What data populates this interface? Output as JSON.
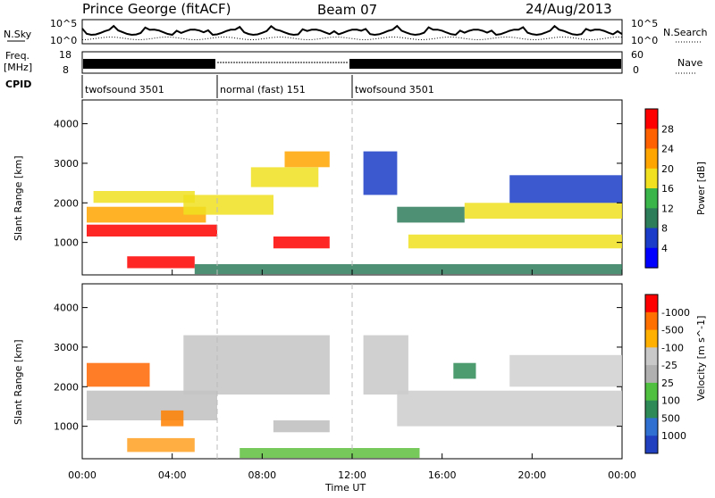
{
  "header": {
    "station": "Prince George (fitACF)",
    "beam": "Beam 07",
    "date": "24/Aug/2013"
  },
  "side_labels": {
    "nsky": "N.Sky",
    "nsky_top": "10^5",
    "nsky_bottom": "10^0",
    "nsearch": "N.Search",
    "nsearch_top": "10^5",
    "nsearch_bottom": "10^0",
    "freq": "Freq.",
    "freq_unit": "[MHz]",
    "freq_top": "18",
    "freq_bottom": "8",
    "nave": "Nave",
    "nave_top": "60",
    "nave_bottom": "0",
    "cpid": "CPID"
  },
  "cpid_segments": [
    {
      "start_hour": 0,
      "end_hour": 6,
      "label": "twofsound 3501"
    },
    {
      "start_hour": 6,
      "end_hour": 12,
      "label": "normal (fast) 151"
    },
    {
      "start_hour": 12,
      "end_hour": 24,
      "label": "twofsound 3501"
    }
  ],
  "chart_data": [
    {
      "type": "heatmap",
      "panel": "power",
      "ylabel": "Slant Range [km]",
      "xlabel": "",
      "xlim_hours": [
        0,
        24
      ],
      "ylim": [
        180,
        4600
      ],
      "yticks": [
        1000,
        2000,
        3000,
        4000
      ],
      "colorbar": {
        "label": "Power [dB]",
        "ticks": [
          "4",
          "8",
          "12",
          "16",
          "20",
          "24",
          "28"
        ],
        "colors": [
          "#0000ff",
          "#1a3cc8",
          "#2e7d5a",
          "#39b54a",
          "#f0e020",
          "#ffa500",
          "#ff6000",
          "#ff0000"
        ]
      },
      "bands": [
        {
          "t0": 0.2,
          "t1": 6.0,
          "r0": 1150,
          "r1": 1450,
          "level": 7
        },
        {
          "t0": 0.2,
          "t1": 5.5,
          "r0": 1500,
          "r1": 1900,
          "level": 5
        },
        {
          "t0": 0.5,
          "t1": 5.0,
          "r0": 2000,
          "r1": 2300,
          "level": 4
        },
        {
          "t0": 4.5,
          "t1": 8.5,
          "r0": 1700,
          "r1": 2200,
          "level": 4
        },
        {
          "t0": 7.5,
          "t1": 10.5,
          "r0": 2400,
          "r1": 2900,
          "level": 4
        },
        {
          "t0": 9.0,
          "t1": 11.0,
          "r0": 2900,
          "r1": 3300,
          "level": 5
        },
        {
          "t0": 8.5,
          "t1": 11.0,
          "r0": 850,
          "r1": 1150,
          "level": 7
        },
        {
          "t0": 2.0,
          "t1": 5.0,
          "r0": 350,
          "r1": 650,
          "level": 7
        },
        {
          "t0": 12.5,
          "t1": 14.0,
          "r0": 2200,
          "r1": 3300,
          "level": 1
        },
        {
          "t0": 14.0,
          "t1": 17.0,
          "r0": 1500,
          "r1": 1900,
          "level": 2
        },
        {
          "t0": 14.5,
          "t1": 24.0,
          "r0": 850,
          "r1": 1200,
          "level": 4
        },
        {
          "t0": 17.0,
          "t1": 24.0,
          "r0": 1600,
          "r1": 2000,
          "level": 4
        },
        {
          "t0": 19.0,
          "t1": 24.0,
          "r0": 2000,
          "r1": 2700,
          "level": 1
        },
        {
          "t0": 5.0,
          "t1": 24.0,
          "r0": 200,
          "r1": 450,
          "level": 2
        }
      ]
    },
    {
      "type": "heatmap",
      "panel": "velocity",
      "ylabel": "Slant Range [km]",
      "xlabel": "Time UT",
      "xlim_hours": [
        0,
        24
      ],
      "ylim": [
        180,
        4600
      ],
      "yticks": [
        1000,
        2000,
        3000,
        4000
      ],
      "xticks": [
        "00:00",
        "04:00",
        "08:00",
        "12:00",
        "16:00",
        "20:00",
        "00:00"
      ],
      "colorbar": {
        "label": "Velocity [m s^-1]",
        "ticks": [
          "1000",
          "500",
          "100",
          "25",
          "-25",
          "-100",
          "-500",
          "-1000"
        ],
        "colors": [
          "#2040c0",
          "#3070d0",
          "#2e8b57",
          "#50c040",
          "#b0b0b0",
          "#c8c8c8",
          "#ffb000",
          "#ff7000",
          "#ff0000"
        ]
      },
      "bands": [
        {
          "t0": 0.2,
          "t1": 6.0,
          "r0": 1150,
          "r1": 1900,
          "color": "#c0c0c0"
        },
        {
          "t0": 4.5,
          "t1": 11.0,
          "r0": 1800,
          "r1": 3300,
          "color": "#c4c4c4"
        },
        {
          "t0": 12.5,
          "t1": 14.5,
          "r0": 1800,
          "r1": 3300,
          "color": "#c8c8c8"
        },
        {
          "t0": 14.0,
          "t1": 24.0,
          "r0": 1000,
          "r1": 1900,
          "color": "#cccccc"
        },
        {
          "t0": 19.0,
          "t1": 24.0,
          "r0": 2000,
          "r1": 2800,
          "color": "#d0d0d0"
        },
        {
          "t0": 0.2,
          "t1": 3.0,
          "r0": 2000,
          "r1": 2600,
          "color": "#ff6600"
        },
        {
          "t0": 2.0,
          "t1": 5.0,
          "r0": 350,
          "r1": 700,
          "color": "#ffa020"
        },
        {
          "t0": 3.5,
          "t1": 4.5,
          "r0": 1000,
          "r1": 1400,
          "color": "#ff8000"
        },
        {
          "t0": 8.5,
          "t1": 11.0,
          "r0": 850,
          "r1": 1150,
          "color": "#bdbdbd"
        },
        {
          "t0": 7.0,
          "t1": 15.0,
          "r0": 200,
          "r1": 450,
          "color": "#60c040"
        },
        {
          "t0": 16.5,
          "t1": 17.5,
          "r0": 2200,
          "r1": 2600,
          "color": "#2e8b57"
        }
      ]
    }
  ]
}
